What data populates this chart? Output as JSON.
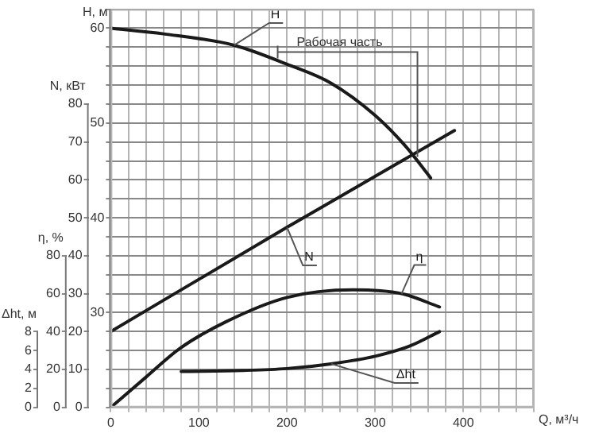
{
  "chart_data": [
    {
      "type": "line",
      "xlabel": "Q, м³/ч",
      "ylabel": "H, м",
      "y2label": "N, кВт",
      "y3label": "η, %",
      "xlim": [
        0,
        480
      ],
      "xticks": [
        0,
        {
          "value": 20,
          "label": null
        },
        {
          "value": 40,
          "label": null
        },
        {
          "value": 60,
          "label": null
        },
        {
          "value": 80,
          "label": null
        },
        100,
        {
          "value": 120,
          "label": null
        },
        {
          "value": 140,
          "label": null
        },
        {
          "value": 160,
          "label": null
        },
        {
          "value": 180,
          "label": null
        },
        200,
        {
          "value": 220,
          "label": null
        },
        {
          "value": 240,
          "label": null
        },
        {
          "value": 260,
          "label": null
        },
        {
          "value": 280,
          "label": null
        },
        300,
        {
          "value": 320,
          "label": null
        },
        {
          "value": 340,
          "label": null
        },
        {
          "value": 360,
          "label": null
        },
        {
          "value": 380,
          "label": null
        },
        400,
        {
          "value": 420,
          "label": null
        },
        {
          "value": 440,
          "label": null
        },
        {
          "value": 460,
          "label": null
        },
        {
          "value": 480,
          "label": null
        }
      ],
      "ylim": [
        20,
        62
      ],
      "yticks": [
        {
          "value": 20,
          "label": null
        },
        {
          "value": 22,
          "label": null
        },
        {
          "value": 24,
          "label": null
        },
        {
          "value": 26,
          "label": null
        },
        {
          "value": 28,
          "label": null
        },
        30,
        {
          "value": 32,
          "label": null
        },
        {
          "value": 34,
          "label": null
        },
        {
          "value": 36,
          "label": null
        },
        {
          "value": 38,
          "label": null
        },
        40,
        {
          "value": 42,
          "label": null
        },
        {
          "value": 44,
          "label": null
        },
        {
          "value": 46,
          "label": null
        },
        {
          "value": 48,
          "label": null
        },
        50,
        {
          "value": 52,
          "label": null
        },
        {
          "value": 54,
          "label": null
        },
        {
          "value": 56,
          "label": null
        },
        {
          "value": 58,
          "label": null
        },
        60,
        {
          "value": 62,
          "label": null
        }
      ],
      "y2lim": [
        0,
        105
      ],
      "y2ticks": [
        0,
        10,
        20,
        30,
        40,
        50,
        60,
        70,
        80
      ],
      "y3lim": [
        0,
        210
      ],
      "y3ticks": [
        0,
        20,
        40,
        60,
        80
      ],
      "grid": true,
      "annotations": [
        "Рабочая часть"
      ],
      "series": [
        {
          "name": "H",
          "color": "#1a1a1a",
          "x": [
            0,
            60,
            140,
            200,
            250,
            300,
            335,
            363
          ],
          "values": [
            60,
            59.4,
            58.2,
            56.2,
            54.2,
            50.8,
            47.5,
            44.2
          ]
        },
        {
          "name": "N",
          "color": "#1a1a1a",
          "axis": "y2",
          "x": [
            0,
            200,
            390
          ],
          "values": [
            20,
            47.5,
            73
          ]
        },
        {
          "name": "η",
          "color": "#1a1a1a",
          "axis": "y3",
          "x": [
            0,
            40,
            78,
            130,
            200,
            275,
            330,
            373
          ],
          "values": [
            0,
            16,
            31,
            45,
            58,
            62,
            60,
            53
          ]
        }
      ]
    },
    {
      "type": "line",
      "ylabel": "Δht, м",
      "xlim": [
        0,
        480
      ],
      "ylim": [
        0,
        42
      ],
      "yticks": [
        0,
        2,
        4,
        6,
        8
      ],
      "tick_labels": "y",
      "series": [
        {
          "name": "Δht",
          "color": "#1a1a1a",
          "x": [
            80,
            150,
            200,
            250,
            300,
            340,
            373
          ],
          "values": [
            3.8,
            3.9,
            4.1,
            4.6,
            5.4,
            6.5,
            8
          ]
        }
      ]
    }
  ]
}
